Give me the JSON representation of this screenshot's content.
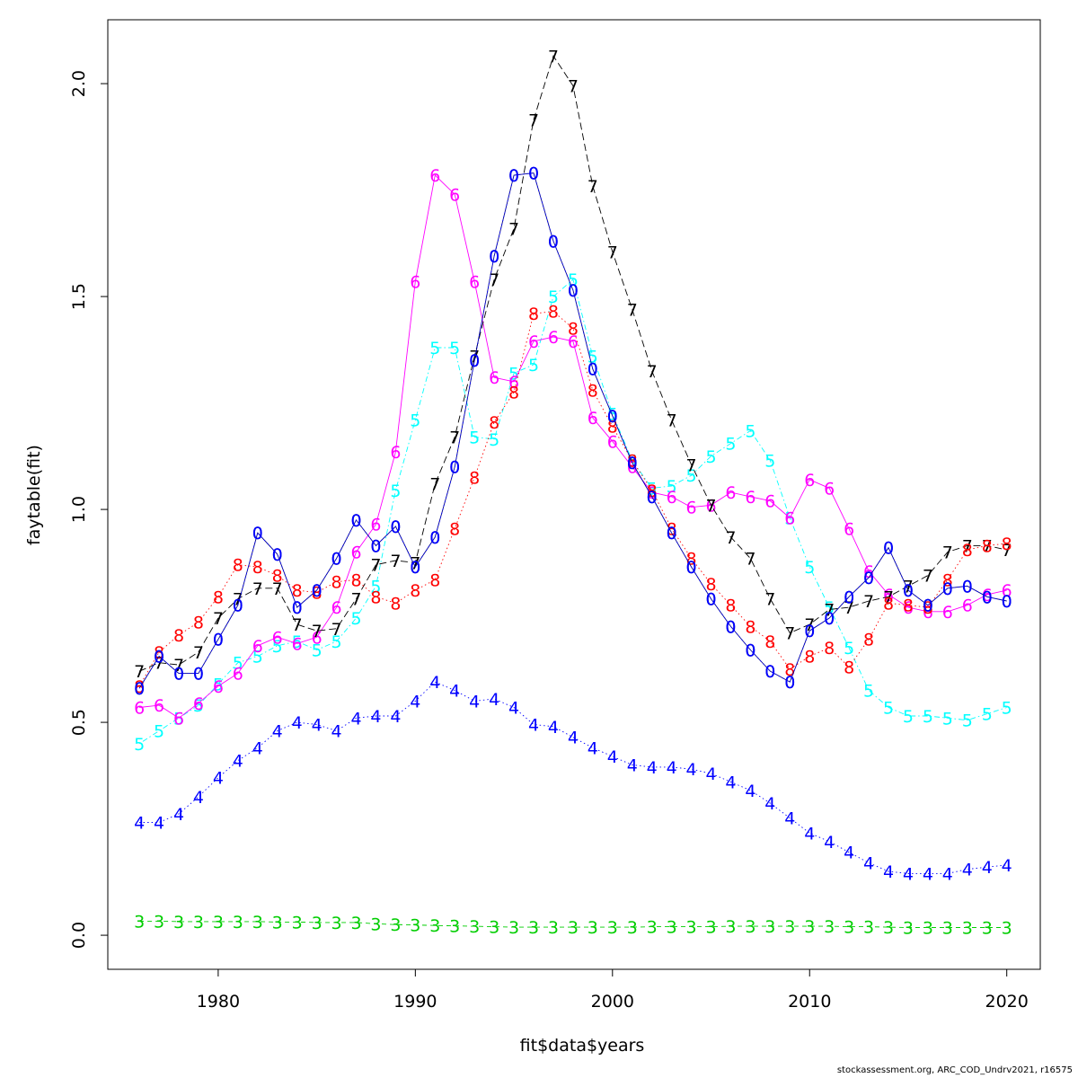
{
  "chart_data": {
    "type": "line",
    "xlabel": "fit$data$years",
    "ylabel": "faytable(fit)",
    "xlim": [
      1974.4,
      2021.7
    ],
    "ylim": [
      -0.08,
      2.15
    ],
    "x_ticks": [
      1980,
      1990,
      2000,
      2010,
      2020
    ],
    "x_tick_labels": [
      "1980",
      "1990",
      "2000",
      "2010",
      "2020"
    ],
    "y_ticks": [
      0.0,
      0.5,
      1.0,
      1.5,
      2.0
    ],
    "y_tick_labels": [
      "0.0",
      "0.5",
      "1.0",
      "1.5",
      "2.0"
    ],
    "grid": false,
    "x": [
      1976,
      1977,
      1978,
      1979,
      1980,
      1981,
      1982,
      1983,
      1984,
      1985,
      1986,
      1987,
      1988,
      1989,
      1990,
      1991,
      1992,
      1993,
      1994,
      1995,
      1996,
      1997,
      1998,
      1999,
      2000,
      2001,
      2002,
      2003,
      2004,
      2005,
      2006,
      2007,
      2008,
      2009,
      2010,
      2011,
      2012,
      2013,
      2014,
      2015,
      2016,
      2017,
      2018,
      2019,
      2020
    ],
    "series": [
      {
        "label": "3",
        "color": "#00cd00",
        "line_style": "dashed",
        "values": [
          0.033,
          0.033,
          0.032,
          0.032,
          0.032,
          0.032,
          0.032,
          0.031,
          0.031,
          0.03,
          0.03,
          0.03,
          0.027,
          0.025,
          0.024,
          0.023,
          0.022,
          0.021,
          0.02,
          0.019,
          0.019,
          0.019,
          0.019,
          0.019,
          0.019,
          0.019,
          0.02,
          0.02,
          0.02,
          0.02,
          0.021,
          0.021,
          0.021,
          0.021,
          0.021,
          0.021,
          0.02,
          0.02,
          0.019,
          0.018,
          0.018,
          0.018,
          0.018,
          0.018,
          0.018
        ]
      },
      {
        "label": "4",
        "color": "#0000ff",
        "line_style": "dotted",
        "values": [
          0.265,
          0.265,
          0.285,
          0.325,
          0.37,
          0.41,
          0.44,
          0.48,
          0.5,
          0.495,
          0.48,
          0.51,
          0.515,
          0.515,
          0.55,
          0.595,
          0.575,
          0.55,
          0.555,
          0.535,
          0.495,
          0.49,
          0.465,
          0.44,
          0.42,
          0.4,
          0.395,
          0.395,
          0.39,
          0.38,
          0.36,
          0.34,
          0.31,
          0.275,
          0.24,
          0.22,
          0.195,
          0.17,
          0.15,
          0.145,
          0.145,
          0.145,
          0.155,
          0.16,
          0.165
        ]
      },
      {
        "label": "5",
        "color": "#00ffff",
        "line_style": "dotdash",
        "values": [
          0.45,
          0.48,
          0.51,
          0.54,
          0.59,
          0.64,
          0.655,
          0.68,
          0.69,
          0.67,
          0.69,
          0.745,
          0.82,
          1.045,
          1.21,
          1.38,
          1.38,
          1.17,
          1.165,
          1.32,
          1.34,
          1.5,
          1.54,
          1.36,
          1.225,
          1.115,
          1.05,
          1.055,
          1.08,
          1.125,
          1.155,
          1.185,
          1.115,
          0.98,
          0.865,
          0.77,
          0.675,
          0.575,
          0.535,
          0.515,
          0.515,
          0.51,
          0.505,
          0.52,
          0.535
        ]
      },
      {
        "label": "6",
        "color": "#ff00ff",
        "line_style": "solid",
        "values": [
          0.535,
          0.54,
          0.51,
          0.545,
          0.585,
          0.615,
          0.68,
          0.7,
          0.685,
          0.7,
          0.77,
          0.9,
          0.965,
          1.135,
          1.535,
          1.785,
          1.74,
          1.535,
          1.31,
          1.3,
          1.395,
          1.405,
          1.395,
          1.215,
          1.16,
          1.1,
          1.04,
          1.03,
          1.005,
          1.01,
          1.04,
          1.03,
          1.02,
          0.98,
          1.07,
          1.05,
          0.955,
          0.855,
          0.8,
          0.77,
          0.76,
          0.76,
          0.775,
          0.8,
          0.81
        ]
      },
      {
        "label": "7",
        "color": "#000000",
        "line_style": "longdash",
        "values": [
          0.62,
          0.64,
          0.635,
          0.665,
          0.745,
          0.79,
          0.815,
          0.815,
          0.73,
          0.715,
          0.72,
          0.79,
          0.87,
          0.88,
          0.875,
          1.06,
          1.17,
          1.36,
          1.54,
          1.66,
          1.915,
          2.065,
          1.995,
          1.76,
          1.605,
          1.47,
          1.325,
          1.21,
          1.105,
          1.01,
          0.935,
          0.885,
          0.79,
          0.71,
          0.73,
          0.765,
          0.77,
          0.785,
          0.795,
          0.82,
          0.845,
          0.9,
          0.915,
          0.915,
          0.905
        ]
      },
      {
        "label": "8",
        "color": "#ff0000",
        "line_style": "dotted",
        "values": [
          0.585,
          0.665,
          0.705,
          0.735,
          0.795,
          0.87,
          0.865,
          0.845,
          0.81,
          0.805,
          0.83,
          0.835,
          0.795,
          0.78,
          0.81,
          0.835,
          0.955,
          1.075,
          1.205,
          1.275,
          1.46,
          1.465,
          1.425,
          1.28,
          1.195,
          1.115,
          1.045,
          0.955,
          0.885,
          0.825,
          0.775,
          0.725,
          0.69,
          0.625,
          0.655,
          0.675,
          0.63,
          0.695,
          0.78,
          0.775,
          0.77,
          0.835,
          0.905,
          0.915,
          0.92
        ]
      },
      {
        "label": "0",
        "color": "#00008b",
        "line_style": "solid",
        "values": [
          0.58,
          0.655,
          0.615,
          0.615,
          0.695,
          0.775,
          0.945,
          0.895,
          0.77,
          0.81,
          0.885,
          0.975,
          0.915,
          0.96,
          0.865,
          0.935,
          1.1,
          1.35,
          1.595,
          1.785,
          1.79,
          1.63,
          1.515,
          1.33,
          1.22,
          1.11,
          1.03,
          0.945,
          0.865,
          0.79,
          0.725,
          0.67,
          0.62,
          0.595,
          0.715,
          0.745,
          0.795,
          0.84,
          0.91,
          0.81,
          0.775,
          0.815,
          0.82,
          0.795,
          0.785
        ]
      },
      {
        "label": "0",
        "color": "#0000ff",
        "line_style": "dotted",
        "values": [
          0.58,
          0.655,
          0.615,
          0.615,
          0.695,
          0.775,
          0.945,
          0.895,
          0.77,
          0.81,
          0.885,
          0.975,
          0.915,
          0.96,
          0.865,
          0.935,
          1.1,
          1.35,
          1.595,
          1.785,
          1.79,
          1.63,
          1.515,
          1.33,
          1.22,
          1.11,
          1.03,
          0.945,
          0.865,
          0.79,
          0.725,
          0.67,
          0.62,
          0.595,
          0.715,
          0.745,
          0.795,
          0.84,
          0.91,
          0.81,
          0.775,
          0.815,
          0.82,
          0.795,
          0.785
        ]
      }
    ]
  },
  "footer": "stockassessment.org, ARC_COD_Undrv2021, r16575"
}
